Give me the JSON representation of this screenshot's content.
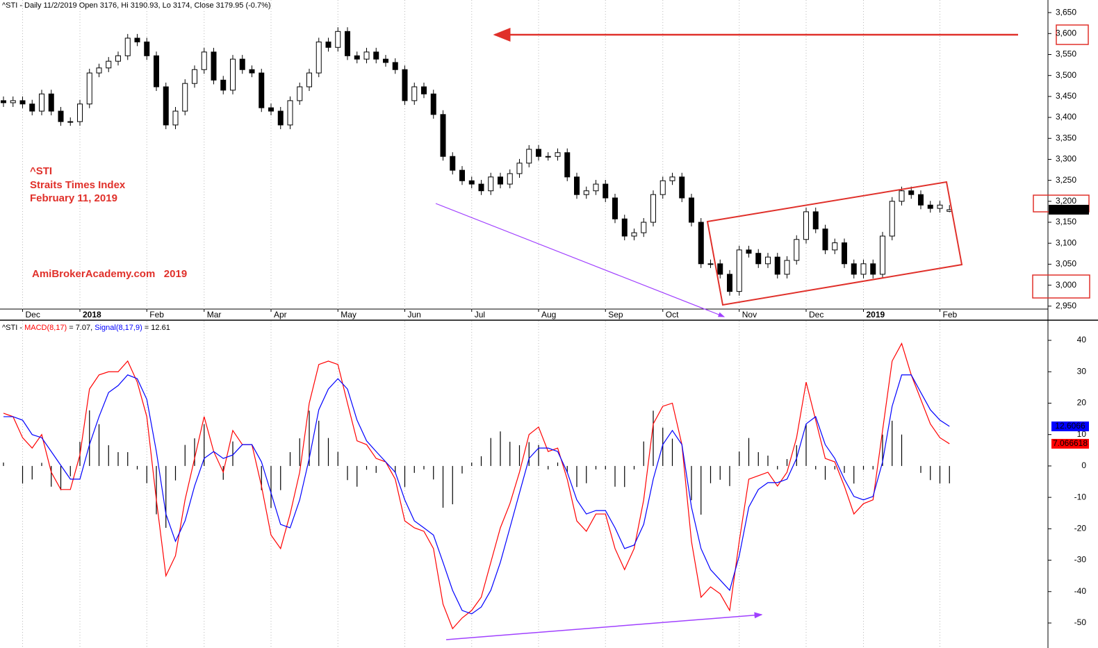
{
  "chart_data": [
    {
      "type": "candlestick",
      "title": "^STI - Daily 11/2/2019 Open 3176, Hi 3190.93, Lo 3174, Close 3179.95 (-0.7%)",
      "annotations": [
        "^STI",
        "Straits Times Index",
        "February 11, 2019",
        "AmiBrokerAcademy.com   2019"
      ],
      "last_label": "3,179.95",
      "categories": [
        null,
        null,
        "Dec",
        null,
        null,
        null,
        null,
        null,
        "2018",
        null,
        null,
        null,
        null,
        null,
        null,
        "Feb",
        null,
        null,
        null,
        null,
        null,
        "Mar",
        null,
        null,
        null,
        null,
        null,
        null,
        "Apr",
        null,
        null,
        null,
        null,
        null,
        null,
        "May",
        null,
        null,
        null,
        null,
        null,
        null,
        "Jun",
        null,
        null,
        null,
        null,
        null,
        null,
        "Jul",
        null,
        null,
        null,
        null,
        null,
        null,
        "Aug",
        null,
        null,
        null,
        null,
        null,
        null,
        "Sep",
        null,
        null,
        null,
        null,
        null,
        "Oct",
        null,
        null,
        null,
        null,
        null,
        null,
        null,
        "Nov",
        null,
        null,
        null,
        null,
        null,
        null,
        "Dec",
        null,
        null,
        null,
        null,
        null,
        "2019",
        null,
        null,
        null,
        null,
        null,
        null,
        null,
        "Feb",
        null
      ],
      "open": [
        3440,
        3435,
        3440,
        3432,
        3415,
        3456,
        3415,
        3390,
        3390,
        3432,
        3506,
        3518,
        3534,
        3547,
        3589,
        3580,
        3547,
        3473,
        3382,
        3415,
        3481,
        3514,
        3556,
        3489,
        3465,
        3539,
        3514,
        3506,
        3423,
        3415,
        3382,
        3440,
        3473,
        3506,
        3580,
        3567,
        3605,
        3547,
        3539,
        3556,
        3539,
        3531,
        3514,
        3440,
        3473,
        3456,
        3407,
        3307,
        3274,
        3249,
        3241,
        3225,
        3258,
        3241,
        3266,
        3291,
        3324,
        3307,
        3307,
        3316,
        3258,
        3216,
        3225,
        3241,
        3208,
        3158,
        3117,
        3125,
        3150,
        3216,
        3249,
        3258,
        3208,
        3150,
        3051,
        3051,
        3026,
        2985,
        3084,
        3076,
        3051,
        3067,
        3026,
        3059,
        3109,
        3175,
        3134,
        3084,
        3101,
        3051,
        3026,
        3051,
        3026,
        3117,
        3200,
        3225,
        3216,
        3191,
        3183,
        3176
      ],
      "high": [
        3450,
        3450,
        3450,
        3442,
        3466,
        3466,
        3425,
        3400,
        3442,
        3516,
        3528,
        3544,
        3557,
        3599,
        3599,
        3590,
        3557,
        3483,
        3425,
        3491,
        3524,
        3566,
        3566,
        3499,
        3549,
        3549,
        3524,
        3516,
        3433,
        3425,
        3450,
        3483,
        3516,
        3590,
        3590,
        3615,
        3615,
        3557,
        3566,
        3566,
        3549,
        3541,
        3524,
        3483,
        3483,
        3466,
        3417,
        3317,
        3284,
        3259,
        3251,
        3268,
        3268,
        3276,
        3301,
        3334,
        3334,
        3317,
        3326,
        3326,
        3268,
        3235,
        3251,
        3251,
        3218,
        3168,
        3135,
        3160,
        3226,
        3259,
        3268,
        3268,
        3218,
        3160,
        3061,
        3061,
        3036,
        3094,
        3094,
        3086,
        3077,
        3077,
        3069,
        3119,
        3185,
        3185,
        3144,
        3111,
        3111,
        3061,
        3061,
        3061,
        3127,
        3210,
        3235,
        3235,
        3226,
        3201,
        3201,
        3190.93
      ],
      "low": [
        3425,
        3425,
        3422,
        3405,
        3405,
        3405,
        3380,
        3380,
        3380,
        3422,
        3496,
        3508,
        3524,
        3537,
        3570,
        3537,
        3463,
        3372,
        3372,
        3405,
        3471,
        3504,
        3479,
        3455,
        3455,
        3504,
        3496,
        3413,
        3405,
        3372,
        3372,
        3430,
        3463,
        3496,
        3557,
        3557,
        3537,
        3529,
        3529,
        3529,
        3521,
        3504,
        3430,
        3430,
        3446,
        3397,
        3297,
        3264,
        3239,
        3231,
        3215,
        3215,
        3231,
        3231,
        3256,
        3281,
        3297,
        3297,
        3297,
        3248,
        3206,
        3206,
        3215,
        3198,
        3148,
        3107,
        3107,
        3115,
        3140,
        3206,
        3239,
        3198,
        3140,
        3041,
        3041,
        3016,
        2975,
        2975,
        3066,
        3041,
        3041,
        3016,
        3016,
        3049,
        3099,
        3124,
        3074,
        3074,
        3041,
        3016,
        3016,
        3016,
        3016,
        3107,
        3190,
        3206,
        3181,
        3173,
        3173,
        3174
      ],
      "close": [
        3435,
        3440,
        3432,
        3415,
        3456,
        3415,
        3390,
        3390,
        3432,
        3506,
        3518,
        3534,
        3547,
        3589,
        3580,
        3547,
        3473,
        3382,
        3415,
        3481,
        3514,
        3556,
        3489,
        3465,
        3539,
        3514,
        3506,
        3423,
        3415,
        3382,
        3440,
        3473,
        3506,
        3580,
        3567,
        3605,
        3547,
        3539,
        3556,
        3539,
        3531,
        3514,
        3440,
        3473,
        3456,
        3407,
        3307,
        3274,
        3249,
        3241,
        3225,
        3258,
        3241,
        3266,
        3291,
        3324,
        3307,
        3307,
        3316,
        3258,
        3216,
        3225,
        3241,
        3208,
        3158,
        3117,
        3125,
        3150,
        3216,
        3249,
        3258,
        3208,
        3150,
        3051,
        3051,
        3026,
        2985,
        3084,
        3076,
        3051,
        3067,
        3026,
        3059,
        3109,
        3175,
        3134,
        3084,
        3101,
        3051,
        3026,
        3051,
        3026,
        3117,
        3200,
        3225,
        3216,
        3191,
        3183,
        3191,
        3179.95
      ],
      "up_color": "#ffffff",
      "down_color": "#000000",
      "ylim": [
        2943,
        3680
      ],
      "yticks": [
        {
          "value": 2950,
          "label": "2,950"
        },
        {
          "value": 3000,
          "label": "3,000"
        },
        {
          "value": 3050,
          "label": "3,050"
        },
        {
          "value": 3100,
          "label": "3,100"
        },
        {
          "value": 3150,
          "label": "3,150"
        },
        {
          "value": 3200,
          "label": "3,200"
        },
        {
          "value": 3250,
          "label": "3,250"
        },
        {
          "value": 3300,
          "label": "3,300"
        },
        {
          "value": 3350,
          "label": "3,350"
        },
        {
          "value": 3400,
          "label": "3,400"
        },
        {
          "value": 3450,
          "label": "3,450"
        },
        {
          "value": 3500,
          "label": "3,500"
        },
        {
          "value": 3550,
          "label": "3,550"
        },
        {
          "value": 3600,
          "label": "3,600"
        },
        {
          "value": 3650,
          "label": "3,650"
        }
      ],
      "grid": true
    },
    {
      "type": "line",
      "title": "^STI - ",
      "legend_values": [
        " = 7.07, ",
        " = 12.61"
      ],
      "series": [
        {
          "name": "MACD(8,17)",
          "color": "#ff0000",
          "last_label": "7.066618",
          "values": [
            16.8,
            15.7,
            9,
            5.7,
            10,
            -2,
            -7.5,
            -7.5,
            3.5,
            24.5,
            29,
            30,
            30,
            33.4,
            26.7,
            15.7,
            -10.8,
            -35,
            -28.6,
            -10.8,
            2.4,
            15.7,
            4.6,
            -2,
            11.3,
            6.8,
            6.8,
            -6.4,
            -22,
            -26.3,
            -15.3,
            -2,
            20,
            32.3,
            33.4,
            32.3,
            20,
            8,
            6.8,
            2.4,
            1.3,
            -4.2,
            -17.5,
            -19.7,
            -20.8,
            -26.3,
            -44,
            -51.8,
            -48.4,
            -46,
            -41.8,
            -30.7,
            -19.7,
            -12,
            -2,
            10,
            12.4,
            4.6,
            5.7,
            -4.2,
            -17.5,
            -20.8,
            -15.3,
            -15.3,
            -26.3,
            -33,
            -26.3,
            -10.8,
            13.4,
            19,
            20,
            6.8,
            -24,
            -41.8,
            -38.5,
            -40.7,
            -46,
            -24,
            -4.2,
            -3.1,
            -2,
            -6.4,
            -2,
            9,
            26.7,
            14.6,
            2.4,
            1.3,
            -6.4,
            -15.3,
            -12,
            -10.8,
            11.3,
            33.4,
            39,
            29,
            21.2,
            13.4,
            9,
            7.07
          ]
        },
        {
          "name": "Signal(8,17,9)",
          "color": "#0000ff",
          "last_label": "12.6066",
          "values": [
            15.7,
            15.7,
            14.6,
            10,
            9,
            4.6,
            0.2,
            -4.2,
            -4.2,
            6.8,
            15.7,
            23.4,
            25.6,
            29,
            27.8,
            21.2,
            4.6,
            -15.3,
            -24,
            -17.5,
            -6.4,
            2.4,
            4.6,
            2.4,
            3.5,
            6.8,
            6.8,
            1.3,
            -8.6,
            -18.6,
            -19.7,
            -10.8,
            2.4,
            17.9,
            24.5,
            27.8,
            24.5,
            14.6,
            8,
            4.6,
            1.3,
            -2,
            -10.8,
            -17.5,
            -19.7,
            -22,
            -30.7,
            -39.6,
            -46,
            -47.1,
            -44.9,
            -39.6,
            -30.7,
            -19.7,
            -8.6,
            2.4,
            5.7,
            5.7,
            4.6,
            -2,
            -10.8,
            -15.3,
            -14.2,
            -14.2,
            -19.7,
            -26.3,
            -25.2,
            -18.6,
            -4.2,
            6.8,
            11.3,
            6.8,
            -13.1,
            -26.3,
            -33,
            -36.3,
            -39.6,
            -28.6,
            -13.1,
            -7.5,
            -5.3,
            -5.3,
            -4.2,
            2.4,
            13.4,
            15.7,
            6.8,
            2.4,
            -4.2,
            -9.7,
            -10.8,
            -9.7,
            1.3,
            19,
            29,
            29,
            23.4,
            17.9,
            14.6,
            12.61
          ]
        }
      ],
      "histogram": {
        "color": "#000000",
        "values": [
          1.1,
          0,
          -5.6,
          -4.3,
          1,
          -6.6,
          -7.7,
          -3.3,
          7.7,
          17.7,
          13.3,
          6.6,
          4.4,
          4.4,
          -1.1,
          -5.5,
          -15.4,
          -19.7,
          -4.6,
          6.7,
          8.8,
          13.3,
          0,
          -4.4,
          7.8,
          0,
          0,
          -7.7,
          -13.4,
          -7.7,
          4.4,
          8.8,
          17.6,
          14.4,
          8.9,
          4.5,
          -4.5,
          -6.6,
          -1.2,
          -2.2,
          0,
          -2.2,
          -6.7,
          -2.2,
          -1.1,
          -4.3,
          -13.3,
          -12.2,
          -2.4,
          1.1,
          3.1,
          8.9,
          11,
          7.7,
          6.6,
          7.6,
          6.7,
          -1.1,
          1.1,
          -2.2,
          -6.7,
          -5.5,
          -1.1,
          -1.1,
          -6.6,
          -6.7,
          -1.1,
          7.8,
          17.6,
          12.2,
          8.7,
          0,
          -10.9,
          -15.5,
          -5.5,
          -4.4,
          -6.4,
          4.6,
          8.9,
          4.4,
          3.3,
          -1.1,
          2.2,
          6.6,
          13.3,
          -1.1,
          -4.4,
          -1.1,
          -2.2,
          -5.6,
          -1.2,
          -1.1,
          10,
          14.4,
          10,
          0,
          -2.2,
          -4.5,
          -5.6,
          -5.54
        ]
      },
      "ylim": [
        -57.3,
        46.2
      ],
      "yticks": [
        40,
        30,
        20,
        10,
        0,
        -10,
        -20,
        -30,
        -40,
        -50
      ]
    }
  ]
}
